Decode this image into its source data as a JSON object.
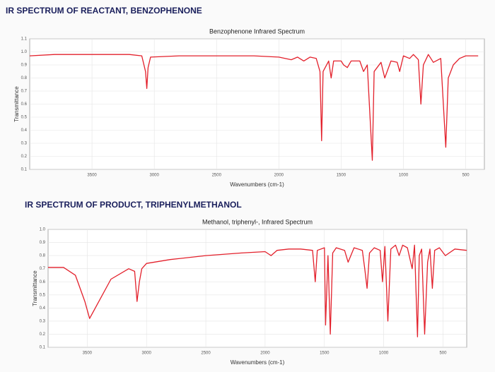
{
  "chart_data": [
    {
      "type": "line",
      "heading": "IR SPECTRUM OF REACTANT, BENZOPHENONE",
      "title": "Benzophenone  Infrared Spectrum",
      "xlabel": "Wavenumbers (cm-1)",
      "ylabel": "Transmittance",
      "xlim": [
        4000,
        350
      ],
      "ylim": [
        0.1,
        1.1
      ],
      "xticks": [
        3500,
        3000,
        2500,
        2000,
        1500,
        1000,
        500
      ],
      "yticks": [
        0.1,
        0.2,
        0.3,
        0.4,
        0.5,
        0.6,
        0.7,
        0.8,
        0.9,
        {
          "value": 1,
          "label": "1.0"
        },
        1.1
      ],
      "grid": true,
      "x": [
        4000,
        3800,
        3500,
        3200,
        3100,
        3070,
        3060,
        3050,
        3030,
        2800,
        2500,
        2200,
        2000,
        1900,
        1850,
        1800,
        1750,
        1700,
        1670,
        1657,
        1645,
        1600,
        1580,
        1560,
        1500,
        1480,
        1450,
        1420,
        1350,
        1320,
        1290,
        1250,
        1235,
        1180,
        1150,
        1100,
        1050,
        1030,
        1000,
        950,
        920,
        880,
        860,
        840,
        800,
        760,
        700,
        660,
        640,
        600,
        550,
        500,
        400
      ],
      "series": [
        {
          "name": "Benzophenone",
          "color": "#e3202b",
          "values": [
            0.97,
            0.98,
            0.98,
            0.98,
            0.97,
            0.85,
            0.72,
            0.88,
            0.96,
            0.97,
            0.97,
            0.97,
            0.96,
            0.94,
            0.96,
            0.93,
            0.96,
            0.95,
            0.85,
            0.32,
            0.85,
            0.93,
            0.8,
            0.93,
            0.93,
            0.9,
            0.88,
            0.93,
            0.93,
            0.85,
            0.9,
            0.17,
            0.85,
            0.92,
            0.8,
            0.93,
            0.92,
            0.85,
            0.97,
            0.95,
            0.98,
            0.94,
            0.6,
            0.9,
            0.98,
            0.92,
            0.95,
            0.27,
            0.8,
            0.9,
            0.95,
            0.97,
            0.97
          ]
        }
      ]
    },
    {
      "type": "line",
      "heading": "IR SPECTRUM OF PRODUCT, TRIPHENYLMETHANOL",
      "title": "Methanol, triphenyl-,  Infrared Spectrum",
      "xlabel": "Wavenumbers (cm-1)",
      "ylabel": "Transmittance",
      "xlim": [
        3830,
        300
      ],
      "ylim": [
        0.1,
        1.0
      ],
      "xticks": [
        3500,
        3000,
        2500,
        2000,
        1500,
        1000,
        500
      ],
      "yticks": [
        0.1,
        0.2,
        0.3,
        0.4,
        0.5,
        0.6,
        0.7,
        0.8,
        0.9,
        {
          "value": 1,
          "label": "1.0"
        }
      ],
      "grid": true,
      "x": [
        3830,
        3700,
        3600,
        3520,
        3480,
        3420,
        3300,
        3150,
        3100,
        3080,
        3060,
        3040,
        3000,
        2800,
        2500,
        2200,
        2000,
        1950,
        1900,
        1800,
        1700,
        1600,
        1577,
        1560,
        1500,
        1490,
        1470,
        1450,
        1430,
        1400,
        1330,
        1300,
        1250,
        1180,
        1160,
        1140,
        1120,
        1080,
        1030,
        1010,
        990,
        965,
        940,
        900,
        870,
        840,
        800,
        760,
        740,
        715,
        700,
        680,
        655,
        630,
        610,
        590,
        570,
        530,
        480,
        400,
        300
      ],
      "series": [
        {
          "name": "Methanol, triphenyl-",
          "color": "#e3202b",
          "values": [
            0.71,
            0.71,
            0.65,
            0.45,
            0.32,
            0.42,
            0.62,
            0.7,
            0.68,
            0.45,
            0.6,
            0.7,
            0.74,
            0.77,
            0.8,
            0.82,
            0.83,
            0.8,
            0.84,
            0.85,
            0.85,
            0.84,
            0.6,
            0.84,
            0.86,
            0.27,
            0.8,
            0.2,
            0.82,
            0.86,
            0.84,
            0.75,
            0.86,
            0.84,
            0.7,
            0.55,
            0.82,
            0.86,
            0.84,
            0.6,
            0.87,
            0.3,
            0.85,
            0.88,
            0.8,
            0.88,
            0.86,
            0.7,
            0.88,
            0.18,
            0.8,
            0.85,
            0.2,
            0.75,
            0.85,
            0.55,
            0.84,
            0.86,
            0.8,
            0.85,
            0.84
          ]
        }
      ]
    }
  ]
}
